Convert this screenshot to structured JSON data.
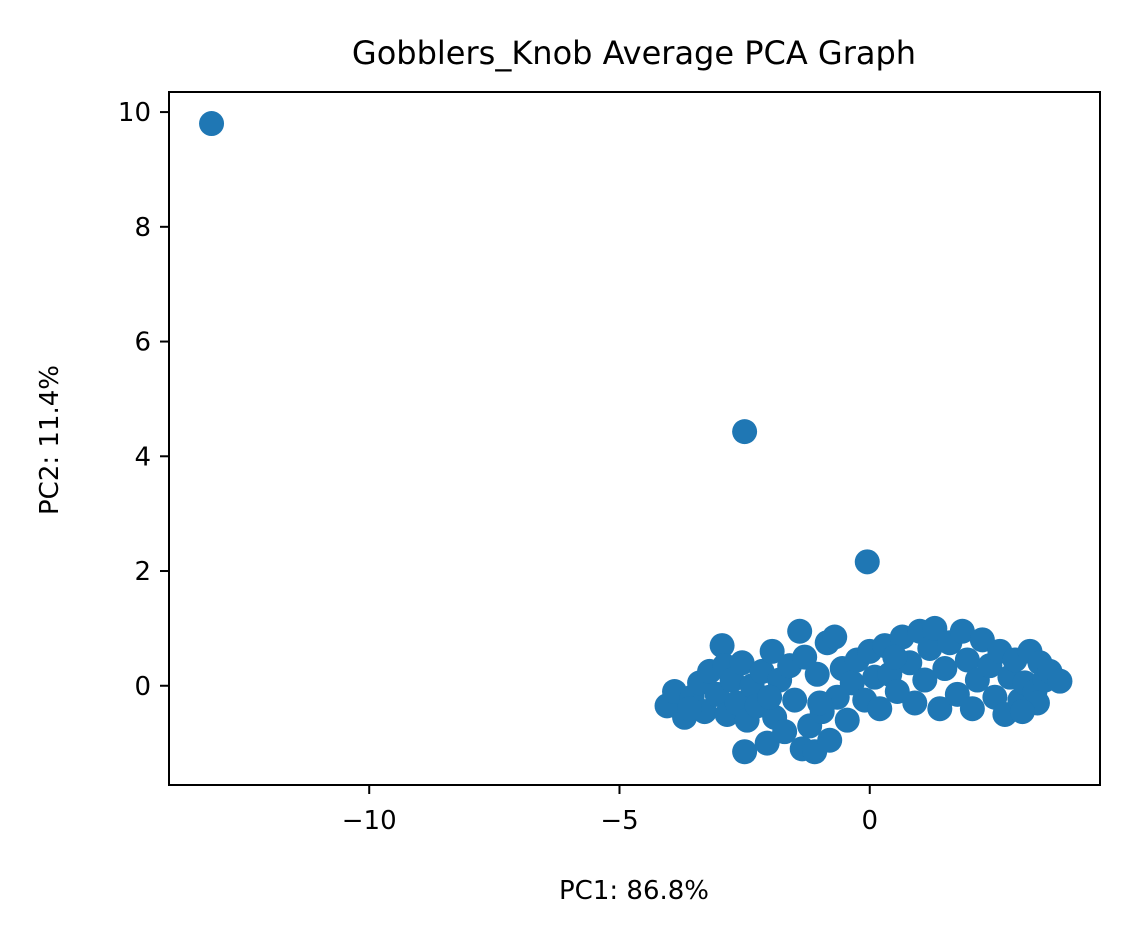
{
  "chart_data": {
    "type": "scatter",
    "title": "Gobblers_Knob Average PCA Graph",
    "xlabel": "PC1: 86.8%",
    "ylabel": "PC2: 11.4%",
    "xlim": [
      -14.0,
      4.6
    ],
    "ylim": [
      -1.73,
      10.35
    ],
    "xticks": [
      -10,
      -5,
      0
    ],
    "xtick_labels": [
      "−10",
      "−5",
      "0"
    ],
    "yticks": [
      0,
      2,
      4,
      6,
      8,
      10
    ],
    "ytick_labels": [
      "0",
      "2",
      "4",
      "6",
      "8",
      "10"
    ],
    "grid": false,
    "color": "#1f77b4",
    "points": [
      [
        -13.15,
        9.8
      ],
      [
        -2.5,
        4.43
      ],
      [
        -0.05,
        2.16
      ],
      [
        -4.05,
        -0.35
      ],
      [
        -3.9,
        -0.1
      ],
      [
        -3.7,
        -0.55
      ],
      [
        -3.55,
        -0.2
      ],
      [
        -3.4,
        0.05
      ],
      [
        -3.3,
        -0.45
      ],
      [
        -3.2,
        0.25
      ],
      [
        -3.05,
        -0.15
      ],
      [
        -2.95,
        0.7
      ],
      [
        -2.9,
        0.35
      ],
      [
        -2.85,
        -0.5
      ],
      [
        -2.75,
        0.1
      ],
      [
        -2.65,
        -0.3
      ],
      [
        -2.55,
        0.4
      ],
      [
        -2.5,
        -1.15
      ],
      [
        -2.45,
        -0.6
      ],
      [
        -2.35,
        0.0
      ],
      [
        -2.25,
        -0.35
      ],
      [
        -2.15,
        0.25
      ],
      [
        -2.05,
        -1.0
      ],
      [
        -1.95,
        0.6
      ],
      [
        -1.9,
        -0.55
      ],
      [
        -1.8,
        0.1
      ],
      [
        -1.7,
        -0.8
      ],
      [
        -1.6,
        0.35
      ],
      [
        -1.5,
        -0.25
      ],
      [
        -1.4,
        0.95
      ],
      [
        -1.35,
        -1.1
      ],
      [
        -1.3,
        0.5
      ],
      [
        -1.2,
        -0.7
      ],
      [
        -1.1,
        -1.15
      ],
      [
        -1.05,
        0.2
      ],
      [
        -0.95,
        -0.45
      ],
      [
        -0.85,
        0.75
      ],
      [
        -0.8,
        -0.95
      ],
      [
        -0.7,
        0.85
      ],
      [
        -0.65,
        -0.2
      ],
      [
        -0.55,
        0.3
      ],
      [
        -0.45,
        -0.6
      ],
      [
        -0.35,
        0.05
      ],
      [
        -0.25,
        0.45
      ],
      [
        -0.1,
        -0.25
      ],
      [
        0.0,
        0.6
      ],
      [
        0.1,
        0.15
      ],
      [
        0.2,
        -0.4
      ],
      [
        0.3,
        0.7
      ],
      [
        0.4,
        0.2
      ],
      [
        0.55,
        -0.1
      ],
      [
        0.65,
        0.85
      ],
      [
        0.8,
        0.4
      ],
      [
        0.9,
        -0.3
      ],
      [
        1.0,
        0.95
      ],
      [
        1.1,
        0.1
      ],
      [
        1.2,
        0.65
      ],
      [
        1.3,
        1.0
      ],
      [
        1.4,
        -0.4
      ],
      [
        1.5,
        0.3
      ],
      [
        1.6,
        0.75
      ],
      [
        1.75,
        -0.15
      ],
      [
        1.85,
        0.95
      ],
      [
        1.95,
        0.45
      ],
      [
        2.05,
        -0.4
      ],
      [
        2.15,
        0.1
      ],
      [
        2.25,
        0.8
      ],
      [
        2.4,
        0.35
      ],
      [
        2.5,
        -0.2
      ],
      [
        2.6,
        0.6
      ],
      [
        2.7,
        -0.5
      ],
      [
        2.8,
        0.15
      ],
      [
        2.9,
        0.45
      ],
      [
        3.0,
        -0.25
      ],
      [
        3.1,
        0.05
      ],
      [
        3.2,
        0.6
      ],
      [
        3.3,
        -0.1
      ],
      [
        3.4,
        0.4
      ],
      [
        3.5,
        0.1
      ],
      [
        3.6,
        0.25
      ],
      [
        3.8,
        0.08
      ],
      [
        3.35,
        -0.3
      ],
      [
        3.05,
        -0.45
      ],
      [
        -3.6,
        -0.4
      ],
      [
        -2.0,
        -0.2
      ],
      [
        -1.0,
        -0.3
      ],
      [
        0.5,
        0.5
      ]
    ]
  }
}
